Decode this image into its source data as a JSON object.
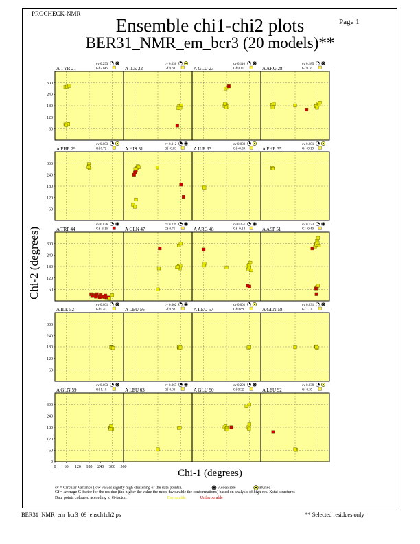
{
  "header": {
    "program": "PROCHECK-NMR",
    "page_label": "Page  1",
    "title": "Ensemble chi1-chi2 plots",
    "subtitle": "BER31_NMR_em_bcr3 (20 models)**"
  },
  "legend": {
    "cv_line": "cv = Circular Variance (low values signify high clustering of the data points).",
    "accessible": "Accessible",
    "buried": "Buried",
    "gf_line": "Gf = Average G-factor for the residue (the higher the value the more favourable the conformations) based on analysis of high-res. Xstal structures",
    "colour_line": "Data points coloured according to G-factor:",
    "favourable": "Favourable",
    "unfavourable": "Unfavourable"
  },
  "footer": {
    "filename": "BER31_NMR_em_bcr3_09_ensch1ch2.ps",
    "selected": "** Selected residues only"
  },
  "colors": {
    "panel_bg": "#ffff99",
    "favourable": "#e6e600",
    "unfavourable": "#cc0000",
    "marker_outline": "#5a5a00"
  },
  "chart_data": {
    "type": "scatter",
    "xlabel": "Chi-1 (degrees)",
    "ylabel": "Chi-2 (degrees)",
    "xlim": [
      0,
      360
    ],
    "ylim": [
      0,
      360
    ],
    "xticks": [
      0,
      60,
      120,
      180,
      240,
      300,
      360
    ],
    "yticks": [
      60,
      120,
      180,
      240,
      300
    ],
    "bottom_yticks": [
      0,
      60,
      120,
      180,
      240,
      300
    ],
    "grid_lines": [
      60,
      180,
      300
    ],
    "grid": true,
    "panels": [
      {
        "label": "A TYR 21",
        "cv": "cv 0.293",
        "gf": "Gf -0.45",
        "access": "accessible",
        "gf_box": "favourable",
        "points": [
          [
            55,
            278,
            "f"
          ],
          [
            65,
            280,
            "f"
          ],
          [
            75,
            284,
            "f"
          ],
          [
            55,
            82,
            "f"
          ],
          [
            62,
            86,
            "f"
          ],
          [
            70,
            84,
            "f"
          ],
          [
            58,
            78,
            "f"
          ]
        ]
      },
      {
        "label": "A ILE 22",
        "cv": "cv 0.030",
        "gf": "Gf 0.39",
        "access": "buried",
        "gf_box": "favourable",
        "points": [
          [
            292,
            178,
            "f"
          ],
          [
            298,
            170,
            "f"
          ],
          [
            302,
            182,
            "f"
          ],
          [
            288,
            168,
            "f"
          ],
          [
            282,
            76,
            "u"
          ]
        ]
      },
      {
        "label": "A GLU 23",
        "cv": "cv 0.110",
        "gf": "Gf 0.11",
        "access": "accessible",
        "gf_box": "favourable",
        "points": [
          [
            175,
            270,
            "f"
          ],
          [
            185,
            275,
            "f"
          ],
          [
            192,
            282,
            "u"
          ],
          [
            170,
            180,
            "f"
          ],
          [
            176,
            186,
            "f"
          ],
          [
            184,
            176,
            "f"
          ],
          [
            178,
            172,
            "f"
          ],
          [
            172,
            190,
            "f"
          ]
        ]
      },
      {
        "label": "A ARG 28",
        "cv": "cv 0.185",
        "gf": "Gf 0.35",
        "access": "accessible",
        "gf_box": "favourable",
        "points": [
          [
            60,
            185,
            "f"
          ],
          [
            68,
            190,
            "f"
          ],
          [
            62,
            172,
            "f"
          ],
          [
            180,
            182,
            "f"
          ],
          [
            240,
            160,
            "u"
          ],
          [
            290,
            178,
            "f"
          ],
          [
            300,
            192,
            "f"
          ],
          [
            305,
            185,
            "f"
          ],
          [
            295,
            170,
            "f"
          ],
          [
            310,
            196,
            "f"
          ]
        ]
      },
      {
        "label": "A PHE 29",
        "cv": "cv 0.003",
        "gf": "Gf 0.72",
        "access": "buried",
        "gf_box": "favourable",
        "points": [
          [
            178,
            295,
            "f"
          ],
          [
            180,
            285,
            "f"
          ],
          [
            182,
            275,
            "f"
          ],
          [
            176,
            280,
            "f"
          ]
        ]
      },
      {
        "label": "A HIS 31",
        "cv": "cv 0.312",
        "gf": "Gf -0.83",
        "access": "accessible",
        "gf_box": "favourable",
        "points": [
          [
            55,
            240,
            "u"
          ],
          [
            60,
            252,
            "u"
          ],
          [
            65,
            262,
            "u"
          ],
          [
            70,
            275,
            "f"
          ],
          [
            75,
            285,
            "f"
          ],
          [
            80,
            280,
            "f"
          ],
          [
            62,
            270,
            "f"
          ],
          [
            178,
            278,
            "f"
          ],
          [
            50,
            82,
            "f"
          ],
          [
            60,
            72,
            "f"
          ],
          [
            65,
            110,
            "f"
          ],
          [
            302,
            188,
            "u"
          ],
          [
            315,
            124,
            "u"
          ]
        ]
      },
      {
        "label": "A ILE 33",
        "cv": "cv 0.000",
        "gf": "Gf -0.59",
        "access": "buried",
        "gf_box": "favourable",
        "points": [
          [
            60,
            176,
            "f"
          ],
          [
            64,
            172,
            "f"
          ]
        ]
      },
      {
        "label": "A PHE 35",
        "cv": "cv 0.001",
        "gf": "Gf -0.19",
        "access": "buried",
        "gf_box": "favourable",
        "points": [
          [
            60,
            276,
            "f"
          ],
          [
            63,
            272,
            "f"
          ]
        ]
      },
      {
        "label": "A TRP 44",
        "cv": "cv 0.036",
        "gf": "Gf -3.16",
        "access": "accessible",
        "gf_box": "unfavourable",
        "points": [
          [
            190,
            35,
            "u"
          ],
          [
            200,
            30,
            "u"
          ],
          [
            210,
            28,
            "u"
          ],
          [
            220,
            35,
            "u"
          ],
          [
            230,
            25,
            "u"
          ],
          [
            240,
            30,
            "u"
          ],
          [
            250,
            22,
            "u"
          ],
          [
            260,
            20,
            "u"
          ],
          [
            270,
            15,
            "u"
          ],
          [
            280,
            18,
            "u"
          ],
          [
            195,
            25,
            "u"
          ],
          [
            215,
            22,
            "u"
          ],
          [
            235,
            18,
            "u"
          ],
          [
            265,
            28,
            "u"
          ],
          [
            285,
            12,
            "f"
          ],
          [
            300,
            30,
            "f"
          ]
        ]
      },
      {
        "label": "A GLN 47",
        "cv": "cv 0.239",
        "gf": "Gf 0.71",
        "access": "accessible",
        "gf_box": "favourable",
        "points": [
          [
            190,
            275,
            "u"
          ],
          [
            185,
            170,
            "f"
          ],
          [
            290,
            290,
            "f"
          ],
          [
            300,
            300,
            "f"
          ],
          [
            280,
            175,
            "f"
          ],
          [
            290,
            182,
            "f"
          ],
          [
            295,
            170,
            "f"
          ],
          [
            298,
            185,
            "f"
          ],
          [
            285,
            178,
            "f"
          ],
          [
            180,
            60,
            "f"
          ]
        ]
      },
      {
        "label": "A ARG 48",
        "cv": "cv 0.257",
        "gf": "Gf -0.14",
        "access": "accessible",
        "gf_box": "favourable",
        "points": [
          [
            60,
            270,
            "u"
          ],
          [
            65,
            195,
            "f"
          ],
          [
            62,
            185,
            "f"
          ],
          [
            180,
            175,
            "f"
          ],
          [
            290,
            180,
            "f"
          ],
          [
            295,
            165,
            "f"
          ],
          [
            300,
            175,
            "f"
          ],
          [
            305,
            200,
            "f"
          ],
          [
            298,
            188,
            "f"
          ],
          [
            310,
            160,
            "f"
          ],
          [
            290,
            80,
            "u"
          ],
          [
            300,
            75,
            "u"
          ]
        ]
      },
      {
        "label": "A ASP 51",
        "cv": "cv 0.173",
        "gf": "Gf -0.40",
        "access": "accessible",
        "gf_box": "favourable",
        "points": [
          [
            270,
            275,
            "u"
          ],
          [
            285,
            285,
            "f"
          ],
          [
            290,
            300,
            "f"
          ],
          [
            295,
            315,
            "f"
          ],
          [
            300,
            330,
            "f"
          ],
          [
            305,
            290,
            "f"
          ],
          [
            292,
            295,
            "f"
          ],
          [
            298,
            305,
            "f"
          ],
          [
            290,
            65,
            "u"
          ],
          [
            295,
            72,
            "u"
          ],
          [
            292,
            35,
            "u"
          ],
          [
            300,
            80,
            "f"
          ]
        ]
      },
      {
        "label": "A ILE 52",
        "cv": "cv 0.001",
        "gf": "Gf 0.43",
        "access": "accessible",
        "gf_box": "favourable",
        "points": [
          [
            295,
            178,
            "f"
          ],
          [
            300,
            176,
            "f"
          ],
          [
            305,
            174,
            "f"
          ]
        ]
      },
      {
        "label": "A LEU 56",
        "cv": "cv 0.002",
        "gf": "Gf 0.88",
        "access": "accessible",
        "gf_box": "favourable",
        "points": [
          [
            290,
            178,
            "f"
          ],
          [
            295,
            182,
            "f"
          ],
          [
            292,
            172,
            "f"
          ],
          [
            298,
            176,
            "f"
          ]
        ]
      },
      {
        "label": "A LEU 57",
        "cv": "cv 0.001",
        "gf": "Gf 0.89",
        "access": "buried",
        "gf_box": "favourable",
        "points": [
          [
            295,
            176,
            "f"
          ],
          [
            300,
            178,
            "f"
          ]
        ]
      },
      {
        "label": "A GLN 58",
        "cv": "cv 0.031",
        "gf": "Gf 1.10",
        "access": "accessible",
        "gf_box": "favourable",
        "points": [
          [
            180,
            178,
            "f"
          ],
          [
            290,
            182,
            "f"
          ],
          [
            295,
            175,
            "f"
          ],
          [
            292,
            178,
            "f"
          ]
        ]
      },
      {
        "label": "A GLN 59",
        "cv": "cv 0.003",
        "gf": "Gf 1.10",
        "access": "accessible",
        "gf_box": "favourable",
        "points": [
          [
            290,
            178,
            "f"
          ],
          [
            295,
            185,
            "f"
          ],
          [
            300,
            172,
            "f"
          ],
          [
            292,
            170,
            "f"
          ]
        ]
      },
      {
        "label": "A LEU 63",
        "cv": "cv 0.067",
        "gf": "Gf 0.83",
        "access": "accessible",
        "gf_box": "favourable",
        "points": [
          [
            180,
            65,
            "f"
          ],
          [
            290,
            176,
            "f"
          ],
          [
            295,
            178,
            "f"
          ]
        ]
      },
      {
        "label": "A GLU 90",
        "cv": "cv 0.293",
        "gf": "Gf 0.32",
        "access": "accessible",
        "gf_box": "favourable",
        "points": [
          [
            170,
            180,
            "f"
          ],
          [
            175,
            185,
            "f"
          ],
          [
            178,
            172,
            "f"
          ],
          [
            182,
            178,
            "f"
          ],
          [
            185,
            168,
            "f"
          ],
          [
            205,
            180,
            "u"
          ],
          [
            285,
            290,
            "f"
          ],
          [
            300,
            300,
            "f"
          ],
          [
            295,
            180,
            "f"
          ],
          [
            300,
            195,
            "f"
          ],
          [
            298,
            172,
            "f"
          ]
        ]
      },
      {
        "label": "A LEU 92",
        "cv": "cv 0.039",
        "gf": "Gf 0.39",
        "access": "buried",
        "gf_box": "favourable",
        "points": [
          [
            65,
            155,
            "u"
          ],
          [
            185,
            62,
            "f"
          ],
          [
            180,
            65,
            "f"
          ]
        ]
      }
    ]
  }
}
